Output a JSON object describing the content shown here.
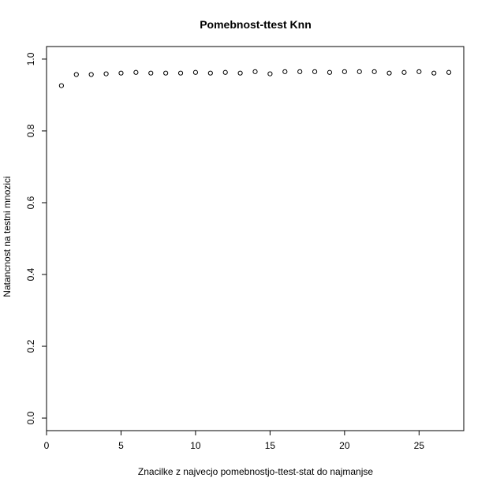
{
  "chart_data": {
    "type": "scatter",
    "title": "Pomebnost-ttest Knn",
    "xlabel": "Znacilke z najvecjo pomebnostjo-ttest-stat do najmanjse",
    "ylabel": "Natancnost na testni mnozici",
    "xlim": [
      0,
      28
    ],
    "ylim": [
      -0.035,
      1.035
    ],
    "x_ticks": [
      0,
      5,
      10,
      15,
      20,
      25
    ],
    "y_ticks": [
      0.0,
      0.2,
      0.4,
      0.6,
      0.8,
      1.0
    ],
    "x_tick_labels": [
      "0",
      "5",
      "10",
      "15",
      "20",
      "25"
    ],
    "y_tick_labels": [
      "0.0",
      "0.2",
      "0.4",
      "0.6",
      "0.8",
      "1.0"
    ],
    "grid": false,
    "marker": "open-circle",
    "x": [
      1,
      2,
      3,
      4,
      5,
      6,
      7,
      8,
      9,
      10,
      11,
      12,
      13,
      14,
      15,
      16,
      17,
      18,
      19,
      20,
      21,
      22,
      23,
      24,
      25,
      26,
      27
    ],
    "y": [
      0.926,
      0.957,
      0.957,
      0.959,
      0.961,
      0.963,
      0.961,
      0.961,
      0.961,
      0.963,
      0.961,
      0.963,
      0.961,
      0.965,
      0.959,
      0.965,
      0.965,
      0.965,
      0.963,
      0.965,
      0.965,
      0.965,
      0.961,
      0.963,
      0.965,
      0.961,
      0.963
    ]
  }
}
